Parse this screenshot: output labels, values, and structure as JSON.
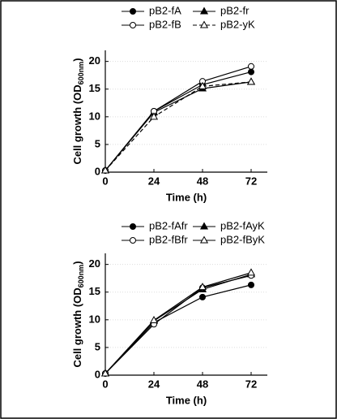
{
  "chart_data": [
    {
      "type": "line",
      "xlabel": "Time (h)",
      "ylabel": "Cell growth (OD",
      "ylabel_sub": "600nm",
      "ylabel_end": ")",
      "x": [
        0,
        24,
        48,
        72
      ],
      "xlim": [
        0,
        80
      ],
      "xticks": [
        0,
        24,
        48,
        72
      ],
      "ylim": [
        0,
        22
      ],
      "yticks": [
        0,
        5,
        10,
        15,
        20
      ],
      "grid": true,
      "series": [
        {
          "name": "pB2-fA",
          "color": "#000000",
          "marker": "filled-circle",
          "line_style": "solid",
          "values": [
            0.3,
            11,
            15.8,
            18.1
          ]
        },
        {
          "name": "pB2-fr",
          "color": "#000000",
          "marker": "filled-triangle",
          "line_style": "solid",
          "values": [
            0.3,
            10.8,
            15.1,
            16.3
          ]
        },
        {
          "name": "pB2-fB",
          "color": "#000000",
          "marker": "open-circle",
          "line_style": "solid",
          "values": [
            0.3,
            11,
            16.4,
            19.1
          ]
        },
        {
          "name": "pB2-yK",
          "color": "#000000",
          "marker": "open-triangle",
          "line_style": "dashed",
          "values": [
            0.3,
            10,
            15.5,
            16.3
          ]
        }
      ]
    },
    {
      "type": "line",
      "xlabel": "Time (h)",
      "ylabel": "Cell growth (OD",
      "ylabel_sub": "600nm",
      "ylabel_end": ")",
      "x": [
        0,
        24,
        48,
        72
      ],
      "xlim": [
        0,
        80
      ],
      "xticks": [
        0,
        24,
        48,
        72
      ],
      "ylim": [
        0,
        22
      ],
      "yticks": [
        0,
        5,
        10,
        15,
        20
      ],
      "grid": true,
      "series": [
        {
          "name": "pB2-fAfr",
          "color": "#000000",
          "marker": "filled-circle",
          "line_style": "solid",
          "values": [
            0.3,
            9.5,
            14.1,
            16.3
          ]
        },
        {
          "name": "pB2-fAyK",
          "color": "#000000",
          "marker": "filled-triangle",
          "line_style": "solid",
          "values": [
            0.3,
            9.8,
            15.5,
            18.2
          ]
        },
        {
          "name": "pB2-fBfr",
          "color": "#000000",
          "marker": "open-circle",
          "line_style": "solid",
          "values": [
            0.3,
            9.2,
            15.8,
            18.0
          ]
        },
        {
          "name": "pB2-fByK",
          "color": "#000000",
          "marker": "open-triangle",
          "line_style": "solid",
          "values": [
            0.3,
            9.9,
            15.9,
            18.5
          ]
        }
      ]
    }
  ]
}
